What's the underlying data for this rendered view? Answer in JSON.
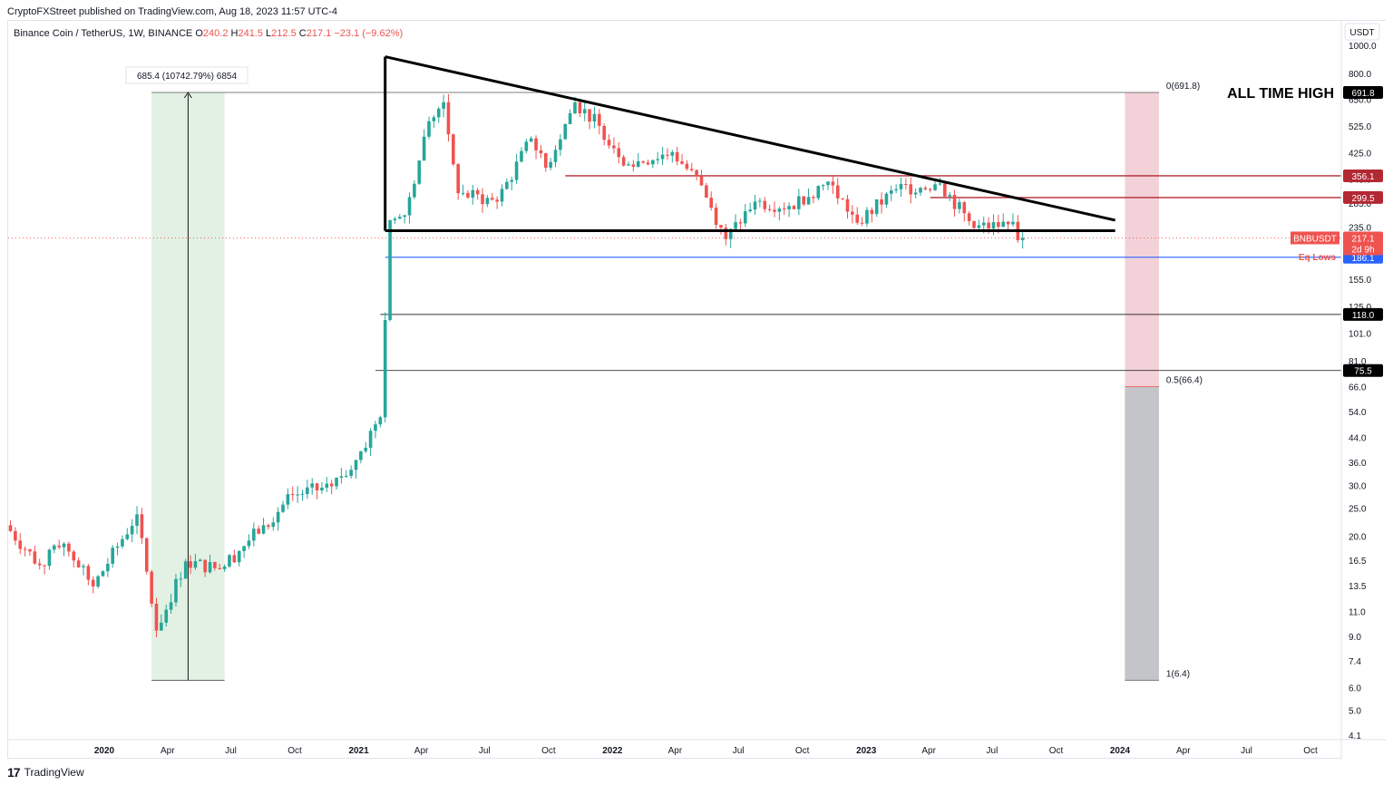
{
  "published_line": "CryptoFXStreet published on TradingView.com, Aug 18, 2023 11:57 UTC-4",
  "footer_brand": "TradingView",
  "footer_logo": "17",
  "chart_data": {
    "type": "candlestick",
    "symbol_title": "Binance Coin / TetherUS, 1W, BINANCE",
    "ohlc": {
      "O_label": "O",
      "O": "240.2",
      "H_label": "H",
      "H": "241.5",
      "L_label": "L",
      "L": "212.5",
      "C_label": "C",
      "C": "217.1",
      "change": "−23.1 (−9.62%)"
    },
    "currency_label": "USDT",
    "y_scale": "log",
    "y_ticks": [
      "1000.0",
      "800.0",
      "650.0",
      "525.0",
      "425.0",
      "345.0",
      "285.0",
      "235.0",
      "190.0",
      "155.0",
      "125.0",
      "101.0",
      "81.0",
      "66.0",
      "54.0",
      "44.0",
      "36.0",
      "30.0",
      "25.0",
      "20.0",
      "16.5",
      "13.5",
      "11.0",
      "9.0",
      "7.4",
      "6.0",
      "5.0",
      "4.1"
    ],
    "x_ticks": [
      "2020",
      "Apr",
      "Jul",
      "Oct",
      "2021",
      "Apr",
      "Jul",
      "Oct",
      "2022",
      "Apr",
      "Jul",
      "Oct",
      "2023",
      "Apr",
      "Jul",
      "Oct",
      "2024",
      "Apr",
      "Jul",
      "Oct"
    ],
    "price_labels": [
      {
        "text": "691.8",
        "value": 691.8,
        "bg": "#000000",
        "fg": "#ffffff"
      },
      {
        "text": "356.1",
        "value": 356.1,
        "bg": "#b22833",
        "fg": "#ffffff"
      },
      {
        "text": "299.5",
        "value": 299.5,
        "bg": "#b22833",
        "fg": "#ffffff"
      },
      {
        "text": "186.1",
        "value": 186.1,
        "bg": "#2962ff",
        "fg": "#ffffff"
      },
      {
        "text": "118.0",
        "value": 118.0,
        "bg": "#000000",
        "fg": "#ffffff"
      },
      {
        "text": "75.5",
        "value": 75.5,
        "bg": "#000000",
        "fg": "#ffffff"
      }
    ],
    "current_price": {
      "symbol": "BNBUSDT",
      "price": "217.1",
      "countdown": "2d 9h",
      "value": 217.1,
      "color": "#ef5350"
    },
    "annotations": {
      "ath_text": "ALL TIME HIGH",
      "eq_lows_text": "Eq Lows",
      "fib_0": "0(691.8)",
      "fib_05": "0.5(66.4)",
      "fib_1": "1(6.4)",
      "measure_text": "685.4 (10742.79%) 6854"
    },
    "levels": {
      "ath": 691.8,
      "resist1": 356.1,
      "resist2": 299.5,
      "support": 230,
      "eq_lows": 186.1,
      "lvl118": 118.0,
      "lvl75": 75.5,
      "fib05": 66.4,
      "fib1": 6.4
    },
    "triangle": {
      "start_date": "2021-02-08",
      "start_value": 920,
      "end_date": "2023-12-25",
      "end_value": 250,
      "base_value": 230
    },
    "measure": {
      "start_date": "2020-03-09",
      "end_date": "2020-06-22",
      "low": 6.4,
      "high": 691.8
    },
    "target_zone": {
      "start_date": "2024-01-08",
      "end_date": "2024-02-26",
      "top": 691.8,
      "mid": 66.4,
      "bottom": 6.4
    },
    "colors": {
      "up": "#26a69a",
      "down": "#ef5350",
      "green_zone": "#e2f1e3",
      "red_zone": "#f3d1d8",
      "grey_zone": "#c3c5c8"
    },
    "weekly_closes_anchor": [
      {
        "date": "2019-08-12",
        "value": 22
      },
      {
        "date": "2019-09-30",
        "value": 16
      },
      {
        "date": "2019-11-04",
        "value": 19
      },
      {
        "date": "2019-12-16",
        "value": 13.5
      },
      {
        "date": "2020-02-17",
        "value": 24
      },
      {
        "date": "2020-03-16",
        "value": 9.5
      },
      {
        "date": "2020-04-27",
        "value": 16.5
      },
      {
        "date": "2020-06-15",
        "value": 15.5
      },
      {
        "date": "2020-08-17",
        "value": 22
      },
      {
        "date": "2020-09-28",
        "value": 28
      },
      {
        "date": "2020-11-23",
        "value": 30
      },
      {
        "date": "2020-12-28",
        "value": 37
      },
      {
        "date": "2021-02-01",
        "value": 52
      },
      {
        "date": "2021-02-15",
        "value": 250
      },
      {
        "date": "2021-03-08",
        "value": 260
      },
      {
        "date": "2021-04-12",
        "value": 550
      },
      {
        "date": "2021-05-03",
        "value": 640
      },
      {
        "date": "2021-05-24",
        "value": 310
      },
      {
        "date": "2021-07-19",
        "value": 290
      },
      {
        "date": "2021-09-06",
        "value": 480
      },
      {
        "date": "2021-09-27",
        "value": 380
      },
      {
        "date": "2021-11-08",
        "value": 640
      },
      {
        "date": "2021-12-13",
        "value": 530
      },
      {
        "date": "2022-01-24",
        "value": 390
      },
      {
        "date": "2022-03-28",
        "value": 430
      },
      {
        "date": "2022-05-09",
        "value": 330
      },
      {
        "date": "2022-06-13",
        "value": 215
      },
      {
        "date": "2022-07-25",
        "value": 290
      },
      {
        "date": "2022-09-12",
        "value": 280
      },
      {
        "date": "2022-11-07",
        "value": 340
      },
      {
        "date": "2022-12-19",
        "value": 245
      },
      {
        "date": "2023-02-13",
        "value": 320
      },
      {
        "date": "2023-04-17",
        "value": 335
      },
      {
        "date": "2023-06-05",
        "value": 235
      },
      {
        "date": "2023-07-24",
        "value": 242
      },
      {
        "date": "2023-08-14",
        "value": 217.1
      }
    ]
  }
}
